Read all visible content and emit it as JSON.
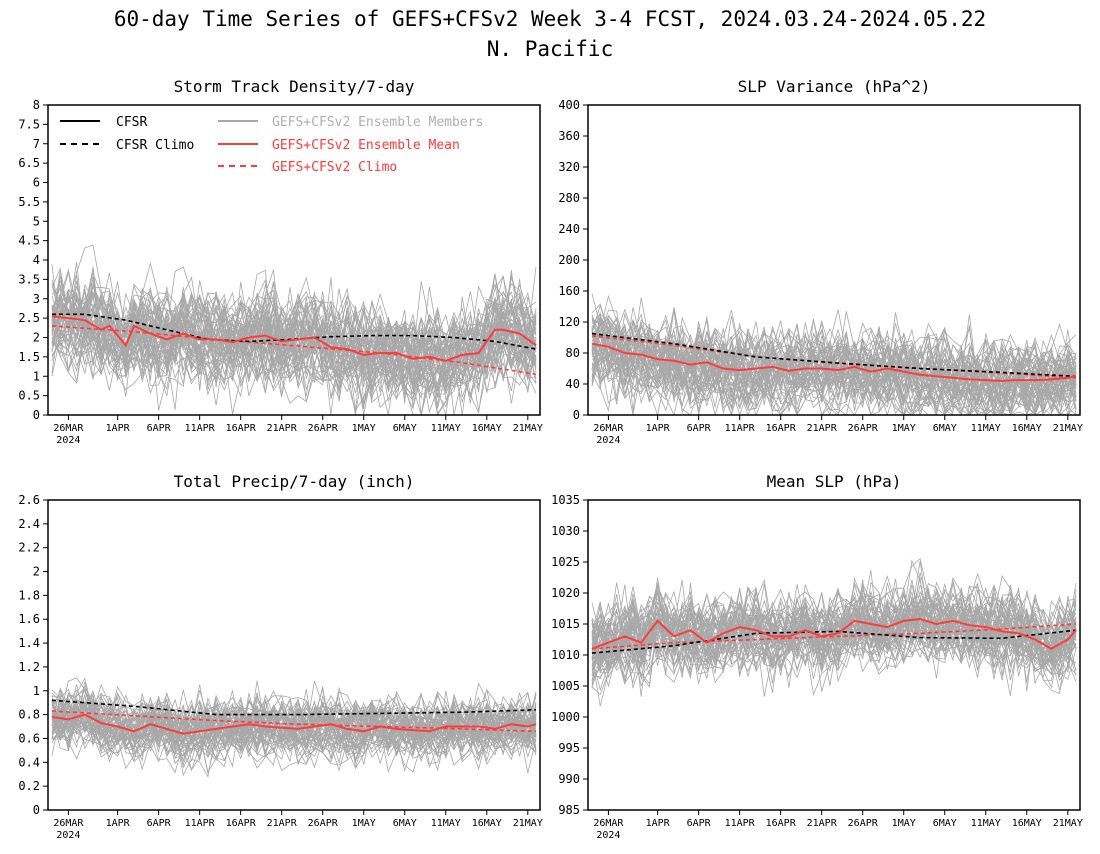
{
  "figure": {
    "title_line1": "60-day Time Series of GEFS+CFSv2 Week 3-4 FCST, 2024.03.24-2024.05.22",
    "title_line2": "N. Pacific"
  },
  "colors": {
    "cfsr": "#000000",
    "members": "#a8a8a8",
    "ensemble_mean": "#ff3b3b",
    "legend_members_text": "#b0b0b0"
  },
  "legend": {
    "cfsr": "CFSR",
    "cfsr_climo": "CFSR Climo",
    "members": "GEFS+CFSv2 Ensemble Members",
    "ens_mean": "GEFS+CFSv2 Ensemble Mean",
    "ens_climo": "GEFS+CFSv2 Climo"
  },
  "x_axis": {
    "date_count": 60,
    "first_date": "2024-03-24",
    "tick_labels": [
      "26MAR",
      "1APR",
      "6APR",
      "11APR",
      "16APR",
      "21APR",
      "26APR",
      "1MAY",
      "6MAY",
      "11MAY",
      "16MAY",
      "21MAY"
    ],
    "tick_day_index": [
      2,
      8,
      13,
      18,
      23,
      28,
      33,
      38,
      43,
      48,
      53,
      58
    ],
    "year_label": "2024"
  },
  "chart_data": [
    {
      "type": "line",
      "title": "Storm Track Density/7-day",
      "ylim": [
        0,
        8
      ],
      "yticks": [
        "0",
        "0.5",
        "1",
        "1.5",
        "2",
        "2.5",
        "3",
        "3.5",
        "4",
        "4.5",
        "5",
        "5.5",
        "6",
        "6.5",
        "7",
        "7.5",
        "8"
      ],
      "members_spread": {
        "count": 60,
        "typical_low": 0.8,
        "typical_high": 3.5
      },
      "series": [
        {
          "name": "CFSR Climo",
          "style": "dashed",
          "color": "#000000",
          "x": [
            0,
            4,
            9,
            14,
            19,
            24,
            29,
            34,
            39,
            44,
            49,
            54,
            59
          ],
          "values": [
            2.6,
            2.6,
            2.45,
            2.2,
            1.95,
            1.9,
            1.95,
            2.02,
            2.05,
            2.05,
            2.0,
            1.9,
            1.7
          ]
        },
        {
          "name": "GEFS+CFSv2 Climo",
          "style": "dashed",
          "color": "#ff3b3b",
          "x": [
            0,
            10,
            20,
            30,
            40,
            50,
            59
          ],
          "values": [
            2.3,
            2.15,
            1.95,
            1.78,
            1.6,
            1.35,
            1.05
          ]
        },
        {
          "name": "GEFS+CFSv2 Ensemble Mean",
          "style": "solid",
          "color": "#ff3b3b",
          "x": [
            0,
            2,
            4,
            6,
            7,
            9,
            10,
            12,
            14,
            16,
            18,
            20,
            22,
            24,
            26,
            28,
            30,
            32,
            34,
            36,
            38,
            40,
            42,
            44,
            46,
            48,
            50,
            52,
            54,
            55,
            57,
            59
          ],
          "values": [
            2.55,
            2.5,
            2.45,
            2.2,
            2.3,
            1.8,
            2.3,
            2.1,
            1.95,
            2.1,
            1.95,
            1.95,
            1.88,
            2.0,
            2.05,
            1.9,
            1.95,
            2.0,
            1.75,
            1.7,
            1.55,
            1.6,
            1.6,
            1.45,
            1.5,
            1.4,
            1.55,
            1.6,
            2.2,
            2.2,
            2.1,
            1.8
          ]
        }
      ]
    },
    {
      "type": "line",
      "title": "SLP Variance (hPa^2)",
      "ylim": [
        0,
        400
      ],
      "yticks": [
        "0",
        "40",
        "80",
        "120",
        "160",
        "200",
        "240",
        "280",
        "320",
        "360",
        "400"
      ],
      "members_spread": {
        "count": 60,
        "typical_low": 25,
        "typical_high": 140
      },
      "series": [
        {
          "name": "CFSR Climo",
          "style": "dashed",
          "color": "#000000",
          "x": [
            0,
            10,
            20,
            30,
            40,
            50,
            59
          ],
          "values": [
            105,
            92,
            75,
            67,
            60,
            55,
            50
          ]
        },
        {
          "name": "GEFS+CFSv2 Climo",
          "style": "dashed",
          "color": "#ff3b3b",
          "x": [
            0,
            10,
            20,
            30,
            40,
            50,
            59
          ],
          "values": [
            102,
            90,
            75,
            67,
            60,
            54,
            48
          ]
        },
        {
          "name": "GEFS+CFSv2 Ensemble Mean",
          "style": "solid",
          "color": "#ff3b3b",
          "x": [
            0,
            2,
            4,
            6,
            8,
            10,
            12,
            14,
            16,
            18,
            20,
            22,
            24,
            26,
            28,
            30,
            32,
            34,
            36,
            38,
            40,
            42,
            44,
            46,
            48,
            50,
            52,
            54,
            56,
            58,
            59
          ],
          "values": [
            92,
            88,
            80,
            78,
            72,
            70,
            65,
            68,
            60,
            58,
            60,
            62,
            57,
            60,
            60,
            58,
            62,
            56,
            60,
            56,
            52,
            50,
            48,
            46,
            45,
            44,
            45,
            45,
            46,
            48,
            50
          ]
        }
      ]
    },
    {
      "type": "line",
      "title": "Total Precip/7-day (inch)",
      "ylim": [
        0,
        2.6
      ],
      "yticks": [
        "0",
        "0.2",
        "0.4",
        "0.6",
        "0.8",
        "1",
        "1.2",
        "1.4",
        "1.6",
        "1.8",
        "2",
        "2.2",
        "2.4",
        "2.6"
      ],
      "members_spread": {
        "count": 60,
        "typical_low": 0.5,
        "typical_high": 1.05
      },
      "series": [
        {
          "name": "CFSR Climo",
          "style": "dashed",
          "color": "#000000",
          "x": [
            0,
            10,
            20,
            30,
            40,
            50,
            59
          ],
          "values": [
            0.92,
            0.87,
            0.8,
            0.8,
            0.81,
            0.82,
            0.84
          ]
        },
        {
          "name": "GEFS+CFSv2 Climo",
          "style": "dashed",
          "color": "#ff3b3b",
          "x": [
            0,
            10,
            20,
            30,
            40,
            50,
            59
          ],
          "values": [
            0.83,
            0.79,
            0.75,
            0.72,
            0.7,
            0.68,
            0.66
          ]
        },
        {
          "name": "GEFS+CFSv2 Ensemble Mean",
          "style": "solid",
          "color": "#ff3b3b",
          "x": [
            0,
            2,
            4,
            6,
            8,
            10,
            12,
            14,
            16,
            18,
            20,
            22,
            24,
            26,
            28,
            30,
            32,
            34,
            36,
            38,
            40,
            42,
            44,
            46,
            48,
            50,
            52,
            54,
            56,
            58,
            59
          ],
          "values": [
            0.78,
            0.76,
            0.8,
            0.73,
            0.7,
            0.66,
            0.72,
            0.68,
            0.64,
            0.66,
            0.68,
            0.7,
            0.72,
            0.7,
            0.69,
            0.68,
            0.7,
            0.72,
            0.68,
            0.66,
            0.7,
            0.68,
            0.67,
            0.66,
            0.7,
            0.7,
            0.7,
            0.68,
            0.72,
            0.7,
            0.72
          ]
        }
      ]
    },
    {
      "type": "line",
      "title": "Mean SLP (hPa)",
      "ylim": [
        985,
        1035
      ],
      "yticks": [
        "985",
        "990",
        "995",
        "1000",
        "1005",
        "1010",
        "1015",
        "1020",
        "1025",
        "1030",
        "1035"
      ],
      "members_spread": {
        "count": 60,
        "typical_low": 1006,
        "typical_high": 1020
      },
      "series": [
        {
          "name": "CFSR Climo",
          "style": "dashed",
          "color": "#000000",
          "x": [
            0,
            10,
            20,
            30,
            40,
            50,
            59
          ],
          "values": [
            1010.3,
            1011.5,
            1013.5,
            1013.8,
            1012.8,
            1012.7,
            1014
          ]
        },
        {
          "name": "GEFS+CFSv2 Climo",
          "style": "dashed",
          "color": "#ff3b3b",
          "x": [
            0,
            10,
            20,
            30,
            40,
            50,
            59
          ],
          "values": [
            1011,
            1012,
            1012.5,
            1013,
            1013.5,
            1014.2,
            1015
          ]
        },
        {
          "name": "GEFS+CFSv2 Ensemble Mean",
          "style": "solid",
          "color": "#ff3b3b",
          "x": [
            0,
            2,
            4,
            6,
            8,
            10,
            12,
            14,
            16,
            18,
            20,
            22,
            24,
            26,
            28,
            30,
            32,
            34,
            36,
            38,
            40,
            42,
            44,
            46,
            48,
            50,
            52,
            54,
            56,
            58,
            59
          ],
          "values": [
            1011,
            1012,
            1013,
            1012,
            1015.5,
            1013,
            1014,
            1012,
            1013.5,
            1014.5,
            1014,
            1013,
            1013,
            1014,
            1013,
            1013.5,
            1015.5,
            1015,
            1014.5,
            1015.5,
            1015.8,
            1015,
            1015.5,
            1014.8,
            1014.5,
            1013.8,
            1013.5,
            1012.5,
            1011,
            1012.5,
            1014
          ]
        }
      ]
    }
  ]
}
